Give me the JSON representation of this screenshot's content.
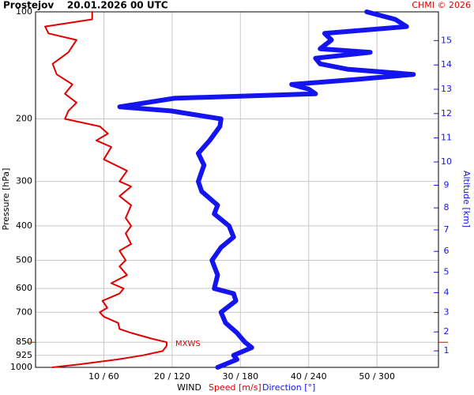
{
  "chart_data": {
    "type": "line",
    "title": "Prostejov    20.01.2026 00 UTC",
    "credit": "CHMI © 2026",
    "ylabel": "Pressure [hPa]",
    "y2label": "Altitude [km]",
    "xlabel": "WIND",
    "log_y": true,
    "grid": true,
    "ylim": [
      1000,
      100
    ],
    "yticks": [
      100,
      200,
      300,
      400,
      500,
      600,
      700,
      850,
      925,
      1000
    ],
    "y2ticks": [
      1,
      2,
      3,
      4,
      5,
      6,
      7,
      8,
      9,
      10,
      11,
      12,
      13,
      14,
      15
    ],
    "xlim": [
      0,
      59
    ],
    "x2lim": [
      0,
      354
    ],
    "xticks": [
      {
        "value": 10,
        "label": "10 / 60"
      },
      {
        "value": 20,
        "label": "20 / 120"
      },
      {
        "value": 30,
        "label": "30 / 180"
      },
      {
        "value": 40,
        "label": "40 / 240"
      },
      {
        "value": 50,
        "label": "50 / 300"
      }
    ],
    "annotation": {
      "text": "MXWS",
      "pressure": 850
    },
    "series": [
      {
        "name": "Speed [m/s]",
        "color": "#e00000",
        "axis": "x",
        "y": [
          1000,
          980,
          950,
          925,
          900,
          870,
          850,
          830,
          800,
          780,
          750,
          720,
          700,
          680,
          650,
          620,
          600,
          580,
          550,
          520,
          500,
          470,
          450,
          420,
          400,
          380,
          350,
          330,
          310,
          300,
          280,
          260,
          240,
          230,
          220,
          210,
          200,
          190,
          180,
          170,
          160,
          150,
          140,
          130,
          120,
          115,
          110,
          105,
          100
        ],
        "values": [
          2.5,
          6.5,
          12,
          15.7,
          18.6,
          19.2,
          19.2,
          17,
          14,
          12.3,
          12.1,
          10,
          9.4,
          10.5,
          9.8,
          12.3,
          12.9,
          11.1,
          13.4,
          12.3,
          13.2,
          12.3,
          14,
          13.2,
          14,
          13.2,
          14,
          12.3,
          14,
          12.3,
          13.4,
          10,
          11.1,
          8.9,
          10.6,
          9.4,
          4.3,
          4.8,
          6,
          4.3,
          5.4,
          3.1,
          2.5,
          4.8,
          6,
          1.9,
          1.4,
          8.3,
          8.3
        ]
      },
      {
        "name": "Direction [°]",
        "color": "#1414f0",
        "axis": "x2",
        "y": [
          1000,
          950,
          925,
          880,
          850,
          800,
          750,
          700,
          650,
          620,
          600,
          550,
          500,
          460,
          430,
          400,
          370,
          350,
          320,
          300,
          270,
          250,
          230,
          210,
          200,
          190,
          185,
          175,
          170,
          165,
          160,
          155,
          150,
          145,
          140,
          135,
          130,
          127,
          120,
          115,
          110,
          105,
          100
        ],
        "values": [
          160,
          177,
          174,
          190,
          184,
          177,
          167,
          163,
          176,
          174,
          157,
          160,
          155,
          163,
          174,
          170,
          157,
          160,
          146,
          143,
          148,
          143,
          153,
          162,
          163,
          119,
          74,
          122,
          246,
          240,
          225,
          281,
          332,
          274,
          250,
          246,
          294,
          250,
          260,
          254,
          326,
          316,
          291
        ]
      }
    ]
  }
}
